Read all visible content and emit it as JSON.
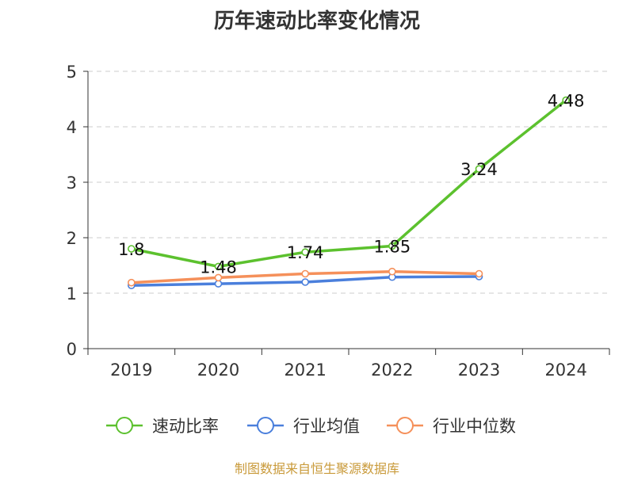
{
  "chart_data": {
    "type": "line",
    "title": "历年速动比率变化情况",
    "categories": [
      "2019",
      "2020",
      "2021",
      "2022",
      "2023",
      "2024"
    ],
    "ylim": [
      0,
      5
    ],
    "yticks": [
      "0",
      "1",
      "2",
      "3",
      "4",
      "5"
    ],
    "grid": true,
    "legend_position": "bottom",
    "series": [
      {
        "name": "速动比率",
        "color": "#5cc12e",
        "values": [
          1.8,
          1.48,
          1.74,
          1.85,
          3.24,
          4.48
        ],
        "labels": [
          "1.8",
          "1.48",
          "1.74",
          "1.85",
          "3.24",
          "4.48"
        ]
      },
      {
        "name": "行业均值",
        "color": "#4a7fdc",
        "values": [
          1.14,
          1.17,
          1.2,
          1.29,
          1.3,
          null
        ]
      },
      {
        "name": "行业中位数",
        "color": "#f5905a",
        "values": [
          1.19,
          1.28,
          1.35,
          1.39,
          1.35,
          null
        ]
      }
    ]
  },
  "footer": {
    "source": "制图数据来自恒生聚源数据库"
  }
}
